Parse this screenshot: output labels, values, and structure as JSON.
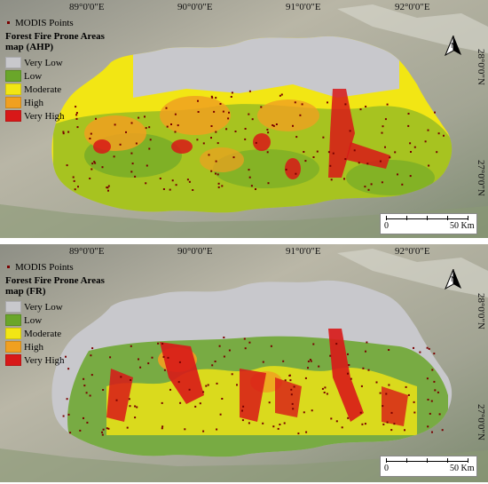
{
  "colors": {
    "very_low": "#c8c8cc",
    "low": "#6aa62a",
    "moderate": "#f2e614",
    "high": "#f0a020",
    "very_high": "#d81818",
    "modis": "#7a0000"
  },
  "coords": {
    "top_x": [
      "89°0'0\"E",
      "90°0'0\"E",
      "91°0'0\"E",
      "92°0'0\"E"
    ],
    "right_y": [
      "28°0'0\"N",
      "27°0'0\"N"
    ]
  },
  "north_label": "N",
  "scale": {
    "zero": "0",
    "end": "50 Km"
  },
  "panels": [
    {
      "modis_label": "MODIS Points",
      "title": "Forest Fire  Prone Areas map (AHP)",
      "legend": [
        "Very Low",
        "Low",
        "Moderate",
        "High",
        "Very High"
      ]
    },
    {
      "modis_label": "MODIS Points",
      "title": "Forest Fire  Prone Areas map (FR)",
      "legend": [
        "Very Low",
        "Low",
        "Moderate",
        "High",
        "Very High"
      ]
    }
  ]
}
